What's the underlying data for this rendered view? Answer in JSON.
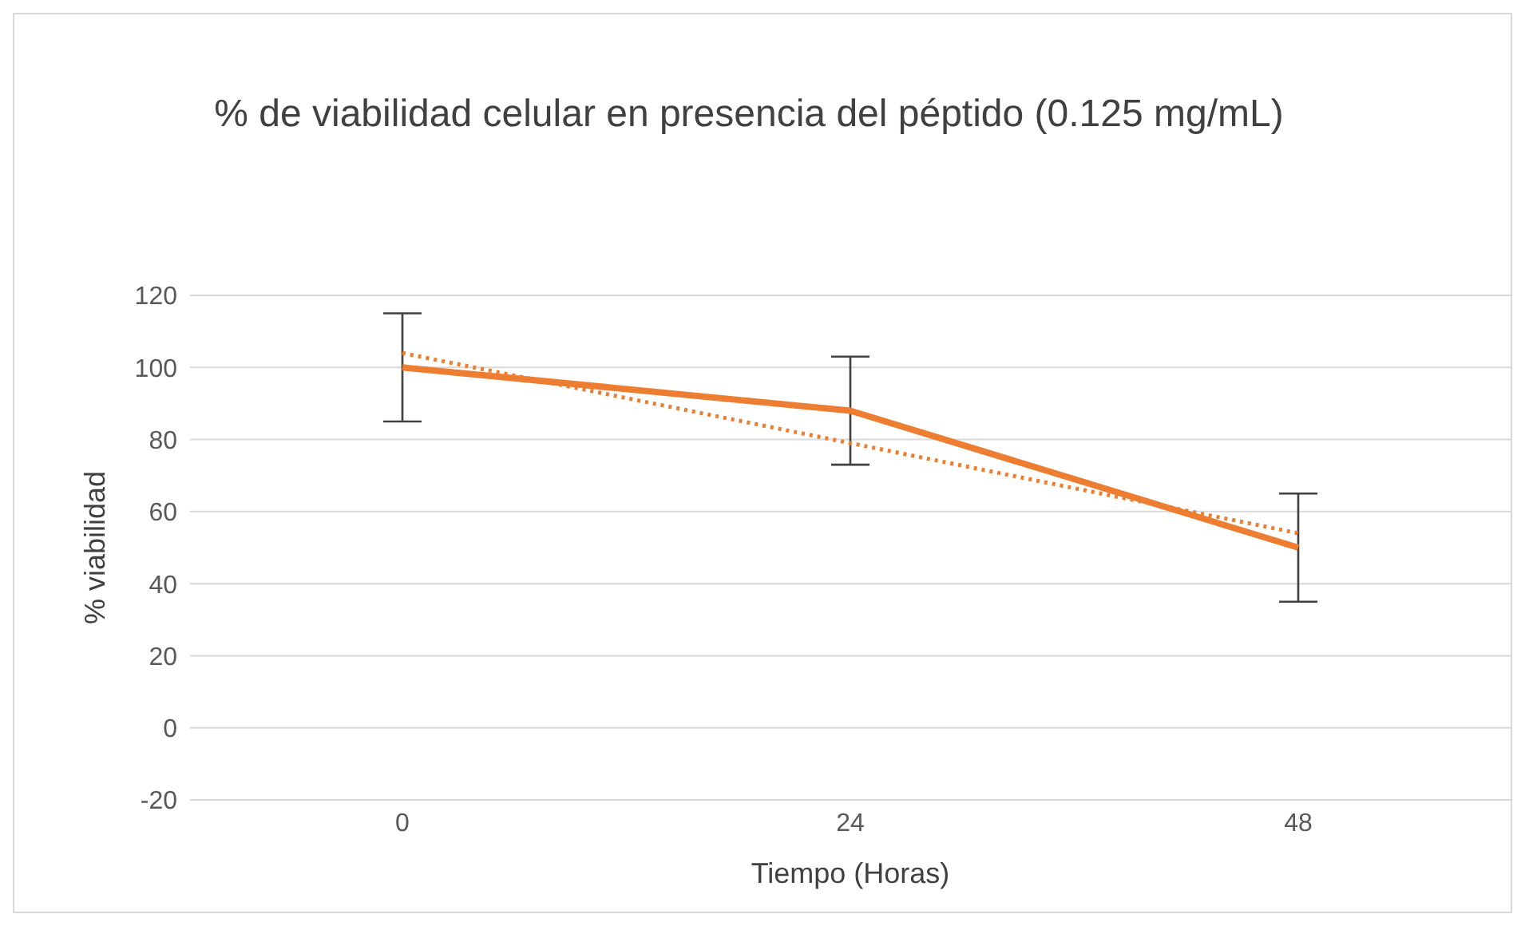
{
  "chart_data": {
    "type": "line",
    "title": "% de viabilidad celular en presencia del péptido (0.125 mg/mL)",
    "xlabel": "Tiempo (Horas)",
    "ylabel": "% viabilidad",
    "categories": [
      "0",
      "24",
      "48"
    ],
    "series": [
      {
        "color": "#ed7d31",
        "values": [
          100,
          88,
          50
        ],
        "errors": [
          15,
          15,
          15
        ],
        "line_style": "solid"
      },
      {
        "type": "line",
        "color": "#ed7d31",
        "values": [
          104,
          79,
          54
        ],
        "line_style": "dotted"
      }
    ],
    "ylim": [
      -20,
      120
    ],
    "yticks": [
      -20,
      0,
      20,
      40,
      60,
      80,
      100,
      120
    ],
    "grid": "y"
  }
}
